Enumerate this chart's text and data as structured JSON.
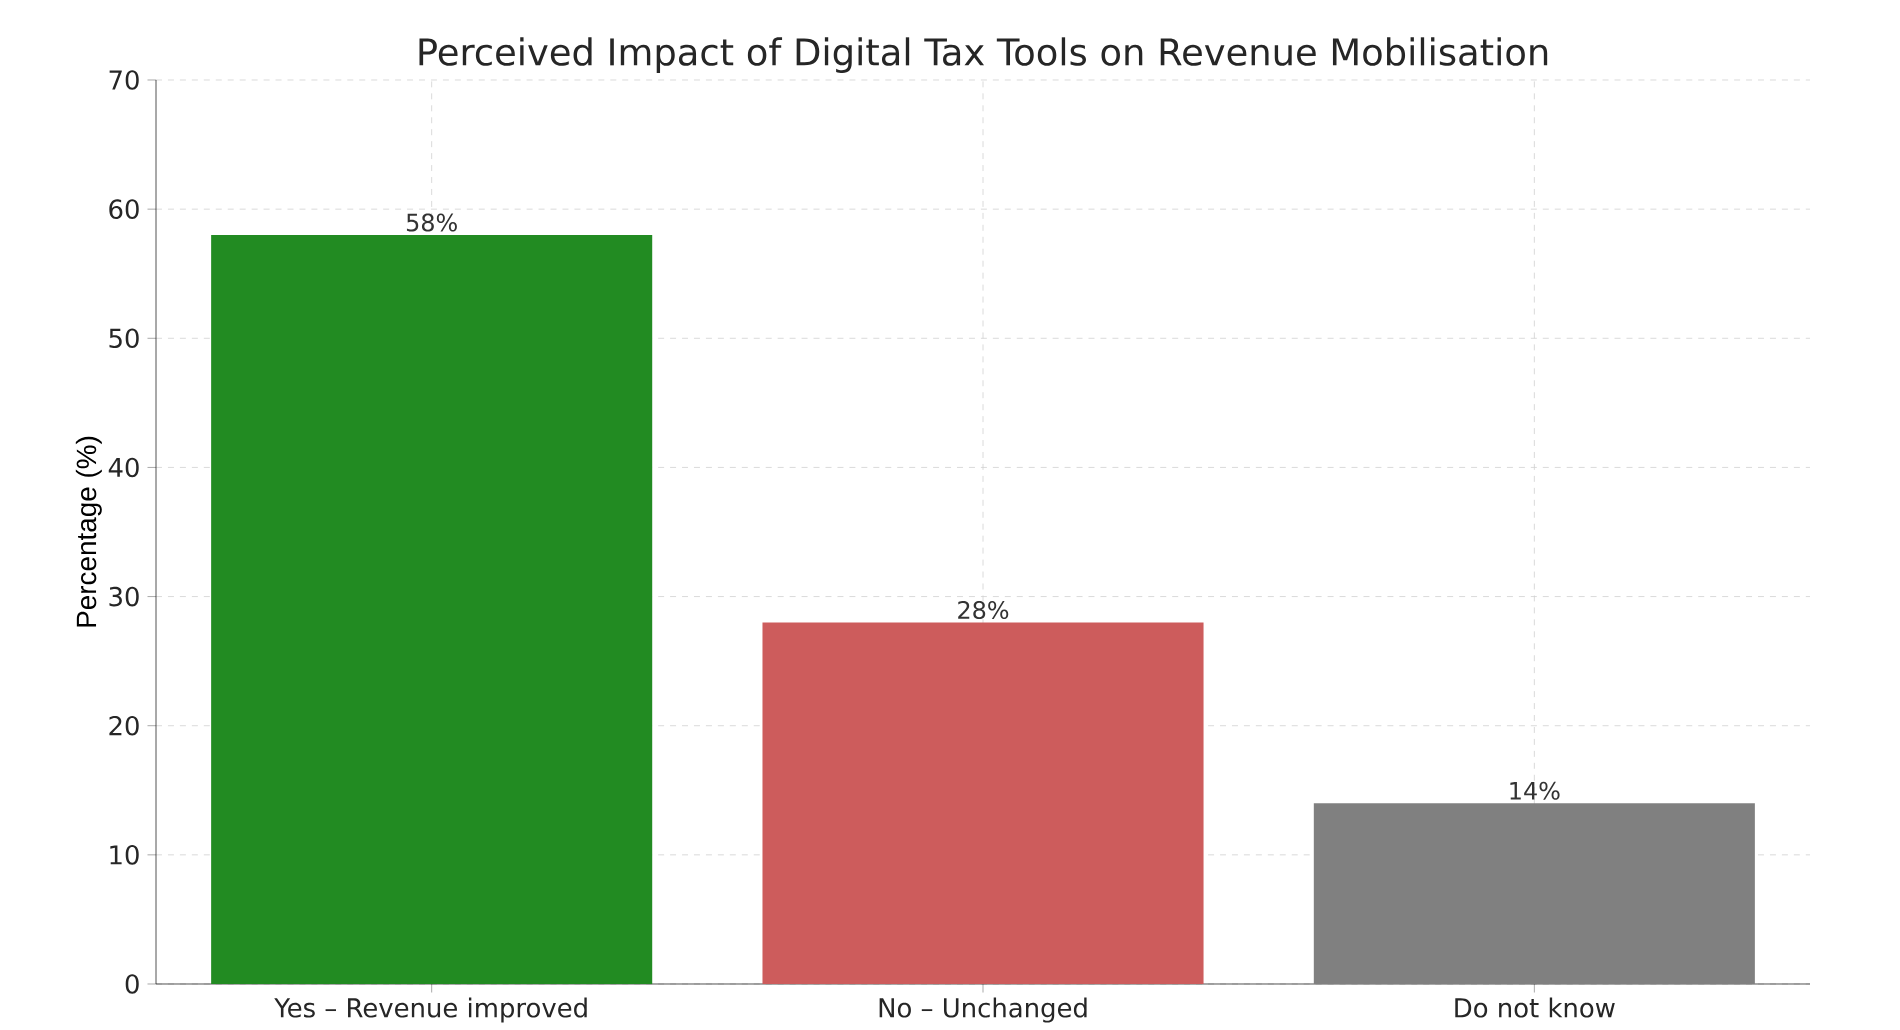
{
  "chart_data": {
    "type": "bar",
    "title": "Perceived Impact of Digital Tax Tools on Revenue Mobilisation",
    "ylabel": "Percentage (%)",
    "categories": [
      "Yes – Revenue improved",
      "No – Unchanged",
      "Do not know"
    ],
    "values": [
      58,
      28,
      14
    ],
    "colors": [
      "#228b22",
      "#cd5c5c",
      "#808080"
    ],
    "value_labels": [
      "58%",
      "28%",
      "14%"
    ],
    "ylim": [
      0,
      70
    ],
    "yticks": [
      0,
      10,
      20,
      30,
      40,
      50,
      60,
      70
    ],
    "grid": true
  }
}
